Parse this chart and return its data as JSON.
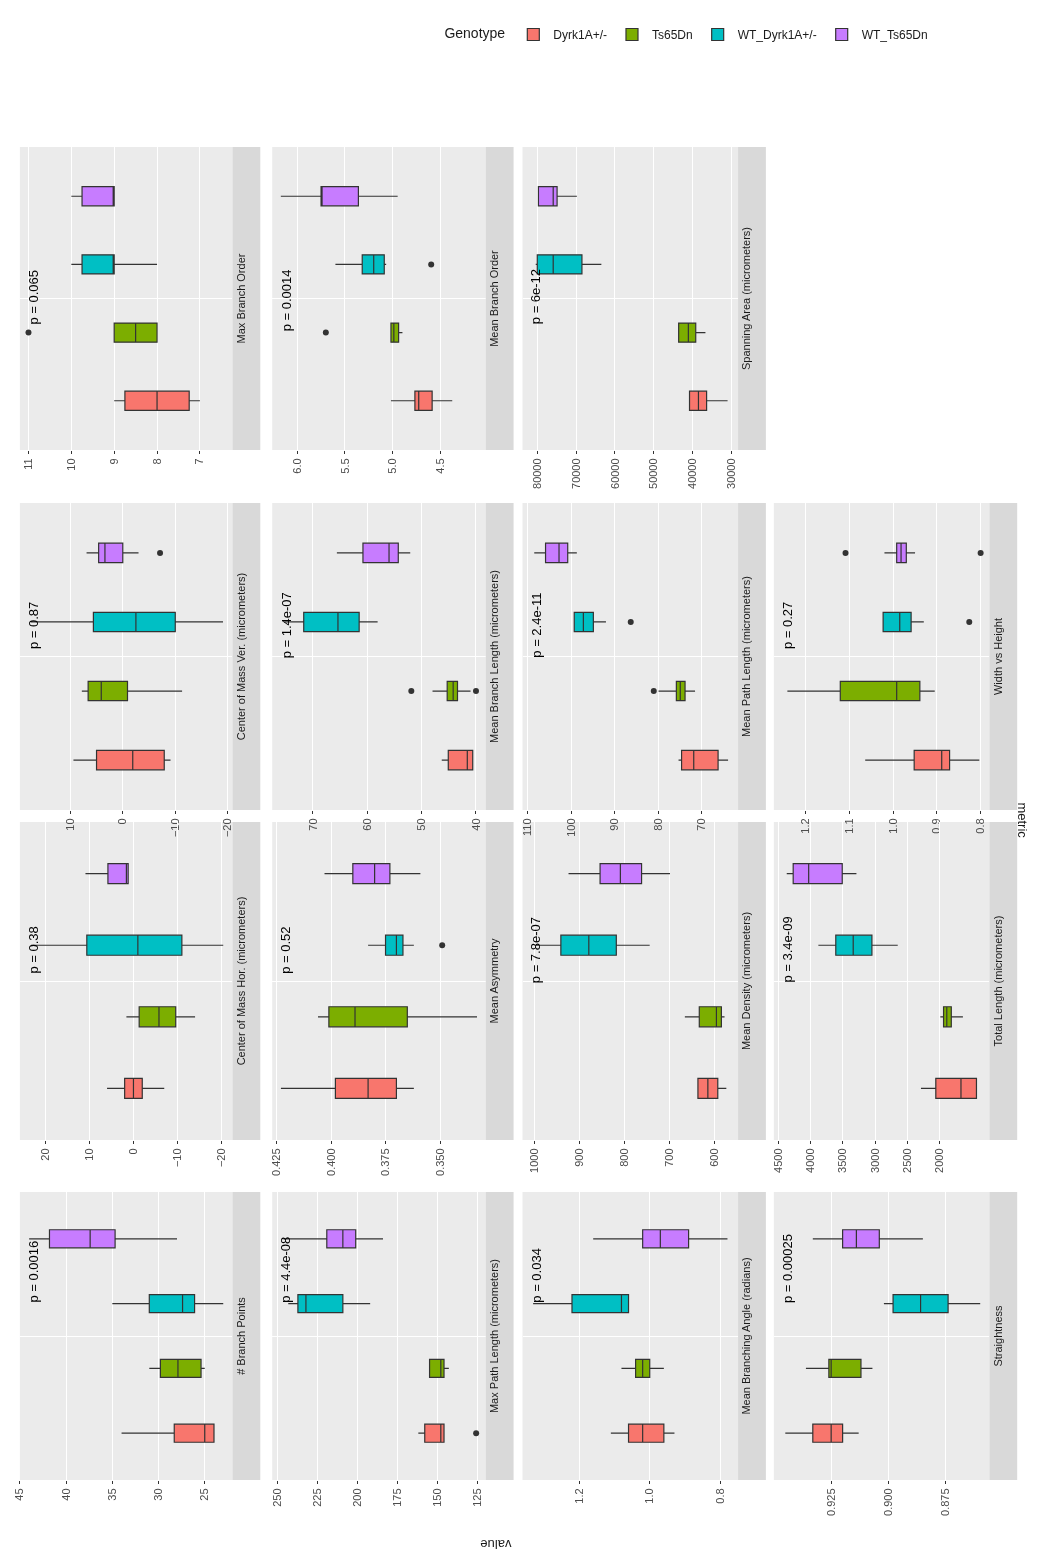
{
  "chart_data": [
    {
      "type": "box",
      "title": "Max Branch Order",
      "orientation": "horizontal",
      "categories": [
        null
      ],
      "xlim": [
        11.2,
        6.24
      ],
      "xticks": [
        11,
        10,
        9,
        8,
        7
      ],
      "grid": true,
      "tick_labels": "x",
      "annotations": [
        "p = 0.065"
      ],
      "legend_title": "Genotype",
      "legend": "top",
      "series": [
        {
          "name": "Dyrk1A+/-",
          "color": "#f8766d",
          "boxes": [
            {
              "low": 7,
              "q1": 7.25,
              "median": 8,
              "q3": 8.75,
              "high": 9
            }
          ]
        },
        {
          "name": "Ts65Dn",
          "color": "#7cae00",
          "boxes": [
            {
              "low": 8,
              "q1": 8,
              "median": 8.5,
              "q3": 9,
              "high": 9,
              "outliers": [
                11
              ]
            }
          ]
        },
        {
          "name": "WT_Dyrk1A+/-",
          "color": "#00bfc4",
          "boxes": [
            {
              "low": 8,
              "q1": 9,
              "median": 9,
              "q3": 9.75,
              "high": 10
            }
          ]
        },
        {
          "name": "WT_Ts65Dn",
          "color": "#c77cff",
          "boxes": [
            {
              "low": 9,
              "q1": 9,
              "median": 9,
              "q3": 9.75,
              "high": 10
            }
          ]
        }
      ]
    },
    {
      "type": "box",
      "title": "Mean Branch Order",
      "orientation": "horizontal",
      "categories": [
        null
      ],
      "xlim": [
        6.26,
        4.03
      ],
      "xticks": [
        {
          "value": 6,
          "label": "6.0"
        },
        5.5,
        {
          "value": 5,
          "label": "5.0"
        },
        4.5
      ],
      "grid": true,
      "tick_labels": "x",
      "annotations": [
        "p = 0.0014"
      ],
      "series": [
        {
          "name": "Dyrk1A+/-",
          "color": "#f8766d",
          "boxes": [
            {
              "low": 4.38,
              "q1": 4.59,
              "median": 4.73,
              "q3": 4.77,
              "high": 5.02
            }
          ]
        },
        {
          "name": "Ts65Dn",
          "color": "#7cae00",
          "boxes": [
            {
              "low": 4.9,
              "q1": 4.94,
              "median": 4.99,
              "q3": 5.02,
              "high": 5.02,
              "outliers": [
                5.7
              ]
            }
          ]
        },
        {
          "name": "WT_Dyrk1A+/-",
          "color": "#00bfc4",
          "boxes": [
            {
              "low": 5.07,
              "q1": 5.09,
              "median": 5.2,
              "q3": 5.32,
              "high": 5.6,
              "outliers": [
                4.6
              ]
            }
          ]
        },
        {
          "name": "WT_Ts65Dn",
          "color": "#c77cff",
          "boxes": [
            {
              "low": 4.95,
              "q1": 5.36,
              "median": 5.74,
              "q3": 5.75,
              "high": 6.17
            }
          ]
        }
      ]
    },
    {
      "type": "box",
      "title": "Spanning Area (micrometers)",
      "orientation": "horizontal",
      "categories": [
        null
      ],
      "xlim": [
        83800,
        28300
      ],
      "xticks": [
        80000,
        70000,
        60000,
        50000,
        40000,
        30000
      ],
      "grid": true,
      "tick_labels": "x",
      "annotations": [
        "p = 6e-12"
      ],
      "series": [
        {
          "name": "Dyrk1A+/-",
          "color": "#f8766d",
          "boxes": [
            {
              "low": 31000,
              "q1": 36400,
              "median": 38500,
              "q3": 40800,
              "high": 40800
            }
          ]
        },
        {
          "name": "Ts65Dn",
          "color": "#7cae00",
          "boxes": [
            {
              "low": 36700,
              "q1": 39200,
              "median": 41100,
              "q3": 43600,
              "high": 43600
            }
          ]
        },
        {
          "name": "WT_Dyrk1A+/-",
          "color": "#00bfc4",
          "boxes": [
            {
              "low": 63500,
              "q1": 68500,
              "median": 75900,
              "q3": 80000,
              "high": 80400
            }
          ]
        },
        {
          "name": "WT_Ts65Dn",
          "color": "#c77cff",
          "boxes": [
            {
              "low": 69800,
              "q1": 74900,
              "median": 75900,
              "q3": 79700,
              "high": 79700
            }
          ]
        }
      ]
    },
    {
      "type": "box",
      "title": "Center of Mass Ver. (micrometers)",
      "orientation": "horizontal",
      "categories": [
        null
      ],
      "xlim": [
        19.6,
        -20.9
      ],
      "xticks": [
        10,
        0,
        -10,
        -20
      ],
      "grid": true,
      "tick_labels": "x",
      "annotations": [
        "p = 0.87"
      ],
      "series": [
        {
          "name": "Dyrk1A+/-",
          "color": "#f8766d",
          "boxes": [
            {
              "low": -9.1,
              "q1": -7.9,
              "median": -1.9,
              "q3": 5,
              "high": 9.4
            }
          ]
        },
        {
          "name": "Ts65Dn",
          "color": "#7cae00",
          "boxes": [
            {
              "low": -11.3,
              "q1": -0.9,
              "median": 4.1,
              "q3": 6.6,
              "high": 7.8
            }
          ]
        },
        {
          "name": "WT_Dyrk1A+/-",
          "color": "#00bfc4",
          "boxes": [
            {
              "low": -19.1,
              "q1": -10,
              "median": -2.5,
              "q3": 5.6,
              "high": 17.5
            }
          ]
        },
        {
          "name": "WT_Ts65Dn",
          "color": "#c77cff",
          "boxes": [
            {
              "low": -3,
              "q1": 0,
              "median": 3.4,
              "q3": 4.6,
              "high": 6.9,
              "outliers": [
                -7.1
              ]
            }
          ]
        }
      ]
    },
    {
      "type": "box",
      "title": "Mean Branch Length (micrometers)",
      "orientation": "horizontal",
      "categories": [
        null
      ],
      "xlim": [
        77.5,
        38.2
      ],
      "xticks": [
        70,
        60,
        50,
        40
      ],
      "grid": true,
      "tick_labels": "x",
      "annotations": [
        "p = 1.4e-07"
      ],
      "series": [
        {
          "name": "Dyrk1A+/-",
          "color": "#f8766d",
          "boxes": [
            {
              "low": 40.6,
              "q1": 40.6,
              "median": 41.6,
              "q3": 45.1,
              "high": 46.3
            }
          ]
        },
        {
          "name": "Ts65Dn",
          "color": "#7cae00",
          "boxes": [
            {
              "low": 41,
              "q1": 43.4,
              "median": 44.2,
              "q3": 45.3,
              "high": 48,
              "outliers": [
                51.9,
                40
              ]
            }
          ]
        },
        {
          "name": "WT_Dyrk1A+/-",
          "color": "#00bfc4",
          "boxes": [
            {
              "low": 58.1,
              "q1": 61.5,
              "median": 65.4,
              "q3": 71.7,
              "high": 75.3
            }
          ]
        },
        {
          "name": "WT_Ts65Dn",
          "color": "#c77cff",
          "boxes": [
            {
              "low": 52.1,
              "q1": 54.3,
              "median": 56,
              "q3": 60.8,
              "high": 65.6
            }
          ]
        }
      ]
    },
    {
      "type": "box",
      "title": "Mean Path Length (micrometers)",
      "orientation": "horizontal",
      "categories": [
        null
      ],
      "xlim": [
        111.2,
        61.6
      ],
      "xticks": [
        110,
        100,
        90,
        80,
        70
      ],
      "grid": true,
      "tick_labels": "x",
      "annotations": [
        "p = 2.4e-11"
      ],
      "series": [
        {
          "name": "Dyrk1A+/-",
          "color": "#f8766d",
          "boxes": [
            {
              "low": 63.9,
              "q1": 66.2,
              "median": 71.8,
              "q3": 74.6,
              "high": 75.3
            }
          ]
        },
        {
          "name": "Ts65Dn",
          "color": "#7cae00",
          "boxes": [
            {
              "low": 71.5,
              "q1": 73.8,
              "median": 74.9,
              "q3": 75.8,
              "high": 79.9,
              "outliers": [
                81
              ]
            }
          ]
        },
        {
          "name": "WT_Dyrk1A+/-",
          "color": "#00bfc4",
          "boxes": [
            {
              "low": 92,
              "q1": 94.9,
              "median": 97.2,
              "q3": 99.3,
              "high": 99.3,
              "outliers": [
                86.3
              ]
            }
          ]
        },
        {
          "name": "WT_Ts65Dn",
          "color": "#c77cff",
          "boxes": [
            {
              "low": 98.7,
              "q1": 100.8,
              "median": 102.8,
              "q3": 105.9,
              "high": 108.5
            }
          ]
        }
      ]
    },
    {
      "type": "box",
      "title": "Width vs Height",
      "orientation": "horizontal",
      "categories": [
        null
      ],
      "xlim": [
        1.273,
        0.78
      ],
      "xticks": [
        1.2,
        1.1,
        {
          "value": 1,
          "label": "1.0"
        },
        0.9,
        0.8
      ],
      "grid": true,
      "tick_labels": "x",
      "annotations": [
        "p = 0.27"
      ],
      "ylabel": "metric",
      "series": [
        {
          "name": "Dyrk1A+/-",
          "color": "#f8766d",
          "boxes": [
            {
              "low": 0.803,
              "q1": 0.871,
              "median": 0.889,
              "q3": 0.952,
              "high": 1.064
            }
          ]
        },
        {
          "name": "Ts65Dn",
          "color": "#7cae00",
          "boxes": [
            {
              "low": 0.905,
              "q1": 0.939,
              "median": 0.992,
              "q3": 1.121,
              "high": 1.242
            }
          ]
        },
        {
          "name": "WT_Dyrk1A+/-",
          "color": "#00bfc4",
          "boxes": [
            {
              "low": 0.93,
              "q1": 0.959,
              "median": 0.985,
              "q3": 1.023,
              "high": 1.023,
              "outliers": [
                0.826
              ]
            }
          ]
        },
        {
          "name": "WT_Ts65Dn",
          "color": "#c77cff",
          "boxes": [
            {
              "low": 0.95,
              "q1": 0.97,
              "median": 0.982,
              "q3": 0.992,
              "high": 1.02,
              "outliers": [
                1.109,
                0.8
              ]
            }
          ]
        }
      ]
    },
    {
      "type": "box",
      "title": "Center of Mass Hor. (micrometers)",
      "orientation": "horizontal",
      "categories": [
        null
      ],
      "xlim": [
        25.8,
        -22.5
      ],
      "xticks": [
        20,
        10,
        0,
        -10,
        -20
      ],
      "grid": true,
      "tick_labels": "x",
      "annotations": [
        "p = 0.38"
      ],
      "series": [
        {
          "name": "Dyrk1A+/-",
          "color": "#f8766d",
          "boxes": [
            {
              "low": -7,
              "q1": -2,
              "median": 0,
              "q3": 2,
              "high": 6
            }
          ]
        },
        {
          "name": "Ts65Dn",
          "color": "#7cae00",
          "boxes": [
            {
              "low": -14,
              "q1": -9.6,
              "median": -5.8,
              "q3": -1.3,
              "high": 1.6
            }
          ]
        },
        {
          "name": "WT_Dyrk1A+/-",
          "color": "#00bfc4",
          "boxes": [
            {
              "low": -20.4,
              "q1": -11,
              "median": -1,
              "q3": 10.6,
              "high": 23.3
            }
          ]
        },
        {
          "name": "WT_Ts65Dn",
          "color": "#c77cff",
          "boxes": [
            {
              "low": 1.2,
              "q1": 1.2,
              "median": 1.6,
              "q3": 5.8,
              "high": 10.9
            }
          ]
        }
      ]
    },
    {
      "type": "box",
      "title": "Mean Asymmetry",
      "orientation": "horizontal",
      "categories": [
        null
      ],
      "xlim": [
        0.427,
        0.329
      ],
      "xticks": [
        0.425,
        {
          "value": 0.4,
          "label": "0.400"
        },
        0.375,
        {
          "value": 0.35,
          "label": "0.350"
        }
      ],
      "grid": true,
      "tick_labels": "x",
      "annotations": [
        "p = 0.52"
      ],
      "series": [
        {
          "name": "Dyrk1A+/-",
          "color": "#f8766d",
          "boxes": [
            {
              "low": 0.362,
              "q1": 0.37,
              "median": 0.383,
              "q3": 0.398,
              "high": 0.423
            }
          ]
        },
        {
          "name": "Ts65Dn",
          "color": "#7cae00",
          "boxes": [
            {
              "low": 0.333,
              "q1": 0.365,
              "median": 0.389,
              "q3": 0.401,
              "high": 0.406
            }
          ]
        },
        {
          "name": "WT_Dyrk1A+/-",
          "color": "#00bfc4",
          "boxes": [
            {
              "low": 0.362,
              "q1": 0.367,
              "median": 0.37,
              "q3": 0.375,
              "high": 0.383,
              "outliers": [
                0.349
              ]
            }
          ]
        },
        {
          "name": "WT_Ts65Dn",
          "color": "#c77cff",
          "boxes": [
            {
              "low": 0.359,
              "q1": 0.373,
              "median": 0.38,
              "q3": 0.39,
              "high": 0.403
            }
          ]
        }
      ]
    },
    {
      "type": "box",
      "title": "Mean Density (micrometers)",
      "orientation": "horizontal",
      "categories": [
        null
      ],
      "xlim": [
        1026,
        548
      ],
      "xticks": [
        1000,
        900,
        800,
        700,
        600
      ],
      "grid": true,
      "tick_labels": "x",
      "annotations": [
        "p = 7.8e-07"
      ],
      "series": [
        {
          "name": "Dyrk1A+/-",
          "color": "#f8766d",
          "boxes": [
            {
              "low": 574,
              "q1": 593,
              "median": 615,
              "q3": 637,
              "high": 637
            }
          ]
        },
        {
          "name": "Ts65Dn",
          "color": "#7cae00",
          "boxes": [
            {
              "low": 578,
              "q1": 585,
              "median": 596,
              "q3": 634,
              "high": 666
            }
          ]
        },
        {
          "name": "WT_Dyrk1A+/-",
          "color": "#00bfc4",
          "boxes": [
            {
              "low": 744,
              "q1": 818,
              "median": 879,
              "q3": 941,
              "high": 997
            }
          ]
        },
        {
          "name": "WT_Ts65Dn",
          "color": "#c77cff",
          "boxes": [
            {
              "low": 699,
              "q1": 762,
              "median": 809,
              "q3": 854,
              "high": 924
            }
          ]
        }
      ]
    },
    {
      "type": "box",
      "title": "Total Length (micrometers)",
      "orientation": "horizontal",
      "categories": [
        null
      ],
      "xlim": [
        4570,
        1230
      ],
      "xticks": [
        4500,
        4000,
        3500,
        3000,
        2500,
        2000
      ],
      "grid": true,
      "tick_labels": "x",
      "annotations": [
        "p = 3.4e-09"
      ],
      "series": [
        {
          "name": "Dyrk1A+/-",
          "color": "#f8766d",
          "boxes": [
            {
              "low": 1430,
              "q1": 1430,
              "median": 1670,
              "q3": 2060,
              "high": 2290
            }
          ]
        },
        {
          "name": "Ts65Dn",
          "color": "#7cae00",
          "boxes": [
            {
              "low": 1640,
              "q1": 1820,
              "median": 1890,
              "q3": 1940,
              "high": 1990
            }
          ]
        },
        {
          "name": "WT_Dyrk1A+/-",
          "color": "#00bfc4",
          "boxes": [
            {
              "low": 2650,
              "q1": 3050,
              "median": 3340,
              "q3": 3610,
              "high": 3880
            }
          ]
        },
        {
          "name": "WT_Ts65Dn",
          "color": "#c77cff",
          "boxes": [
            {
              "low": 3290,
              "q1": 3510,
              "median": 4030,
              "q3": 4270,
              "high": 4370
            }
          ]
        }
      ]
    },
    {
      "type": "box",
      "title": "# Branch Points",
      "orientation": "horizontal",
      "categories": [
        null
      ],
      "xlim": [
        45,
        22
      ],
      "xticks": [
        45,
        40,
        35,
        30,
        25
      ],
      "grid": true,
      "tick_labels": "x",
      "annotations": [
        "p = 0.0016"
      ],
      "series": [
        {
          "name": "Dyrk1A+/-",
          "color": "#f8766d",
          "boxes": [
            {
              "low": 24,
              "q1": 24,
              "median": 25,
              "q3": 28.3,
              "high": 34
            }
          ]
        },
        {
          "name": "Ts65Dn",
          "color": "#7cae00",
          "boxes": [
            {
              "low": 25,
              "q1": 25.4,
              "median": 27.9,
              "q3": 29.8,
              "high": 31
            }
          ]
        },
        {
          "name": "WT_Dyrk1A+/-",
          "color": "#00bfc4",
          "boxes": [
            {
              "low": 23,
              "q1": 26.1,
              "median": 27.4,
              "q3": 31,
              "high": 35
            }
          ]
        },
        {
          "name": "WT_Ts65Dn",
          "color": "#c77cff",
          "boxes": [
            {
              "low": 28,
              "q1": 34.7,
              "median": 37.4,
              "q3": 41.8,
              "high": 44
            }
          ]
        }
      ]
    },
    {
      "type": "box",
      "title": "Max Path Length (micrometers)",
      "orientation": "horizontal",
      "categories": [
        null
      ],
      "xlim": [
        253,
        120
      ],
      "xticks": [
        250,
        225,
        200,
        175,
        150,
        125
      ],
      "grid": true,
      "tick_labels": "x",
      "annotations": [
        "p = 4.4e-08"
      ],
      "xlabel": "value",
      "series": [
        {
          "name": "Dyrk1A+/-",
          "color": "#f8766d",
          "boxes": [
            {
              "low": 146,
              "q1": 146,
              "median": 148,
              "q3": 158,
              "high": 162,
              "outliers": [
                126
              ]
            }
          ]
        },
        {
          "name": "Ts65Dn",
          "color": "#7cae00",
          "boxes": [
            {
              "low": 143,
              "q1": 146,
              "median": 148,
              "q3": 155,
              "high": 155
            }
          ]
        },
        {
          "name": "WT_Dyrk1A+/-",
          "color": "#00bfc4",
          "boxes": [
            {
              "low": 192,
              "q1": 209,
              "median": 232,
              "q3": 237,
              "high": 243
            }
          ]
        },
        {
          "name": "WT_Ts65Dn",
          "color": "#c77cff",
          "boxes": [
            {
              "low": 184,
              "q1": 201,
              "median": 209,
              "q3": 219,
              "high": 246
            }
          ]
        }
      ]
    },
    {
      "type": "box",
      "title": "Mean Branching Angle (radians)",
      "orientation": "horizontal",
      "categories": [
        null
      ],
      "xlim": [
        1.36,
        0.75
      ],
      "xticks": [
        1.2,
        {
          "value": 1,
          "label": "1.0"
        },
        0.8
      ],
      "grid": true,
      "tick_labels": "x",
      "annotations": [
        "p = 0.034"
      ],
      "series": [
        {
          "name": "Dyrk1A+/-",
          "color": "#f8766d",
          "boxes": [
            {
              "low": 0.93,
              "q1": 0.96,
              "median": 1.02,
              "q3": 1.06,
              "high": 1.11
            }
          ]
        },
        {
          "name": "Ts65Dn",
          "color": "#7cae00",
          "boxes": [
            {
              "low": 0.96,
              "q1": 1.0,
              "median": 1.02,
              "q3": 1.04,
              "high": 1.08
            }
          ]
        },
        {
          "name": "WT_Dyrk1A+/-",
          "color": "#00bfc4",
          "boxes": [
            {
              "low": 1.06,
              "q1": 1.06,
              "median": 1.08,
              "q3": 1.22,
              "high": 1.33
            }
          ]
        },
        {
          "name": "WT_Ts65Dn",
          "color": "#c77cff",
          "boxes": [
            {
              "low": 0.78,
              "q1": 0.89,
              "median": 0.97,
              "q3": 1.02,
              "high": 1.16
            }
          ]
        }
      ]
    },
    {
      "type": "box",
      "title": "Straightness",
      "orientation": "horizontal",
      "categories": [
        null
      ],
      "xlim": [
        0.95,
        0.856
      ],
      "xticks": [
        0.925,
        {
          "value": 0.9,
          "label": "0.900"
        },
        0.875
      ],
      "grid": true,
      "tick_labels": "x",
      "annotations": [
        "p = 0.00025"
      ],
      "series": [
        {
          "name": "Dyrk1A+/-",
          "color": "#f8766d",
          "boxes": [
            {
              "low": 0.913,
              "q1": 0.92,
              "median": 0.925,
              "q3": 0.933,
              "high": 0.945
            }
          ]
        },
        {
          "name": "Ts65Dn",
          "color": "#7cae00",
          "boxes": [
            {
              "low": 0.907,
              "q1": 0.912,
              "median": 0.925,
              "q3": 0.926,
              "high": 0.936
            }
          ]
        },
        {
          "name": "WT_Dyrk1A+/-",
          "color": "#00bfc4",
          "boxes": [
            {
              "low": 0.86,
              "q1": 0.874,
              "median": 0.886,
              "q3": 0.898,
              "high": 0.902
            }
          ]
        },
        {
          "name": "WT_Ts65Dn",
          "color": "#c77cff",
          "boxes": [
            {
              "low": 0.885,
              "q1": 0.904,
              "median": 0.914,
              "q3": 0.92,
              "high": 0.933
            }
          ]
        }
      ]
    }
  ]
}
